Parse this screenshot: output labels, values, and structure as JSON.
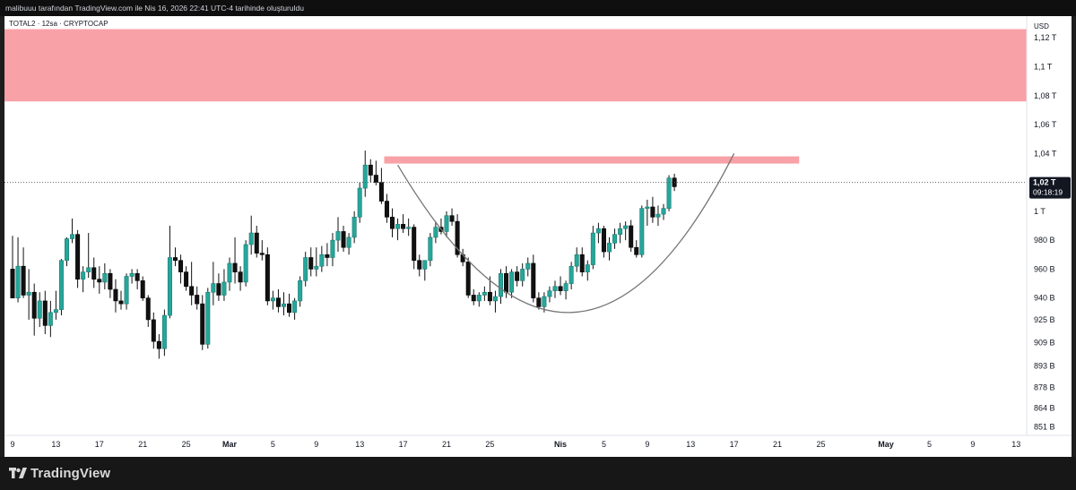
{
  "header": {
    "credit": "malibuuu tarafından TradingView.com ile Nis 16, 2026 22:41 UTC-4 tarihinde oluşturuldu"
  },
  "brand": {
    "name": "TradingView",
    "logo_icon": "tradingview-logo-icon"
  },
  "colors": {
    "up": "#26a69a",
    "down": "#111111",
    "zone": "#f8a1a7",
    "curve": "#757575",
    "price_tag": "#131722"
  },
  "chart_data": {
    "type": "candlestick",
    "title": "TOTAL2 · 12sa · CRYPTOCAP",
    "currency": "USD",
    "y_ticks": [
      {
        "label": "1,12 T",
        "value": 1120
      },
      {
        "label": "1,1 T",
        "value": 1100
      },
      {
        "label": "1,08 T",
        "value": 1080
      },
      {
        "label": "1,06 T",
        "value": 1060
      },
      {
        "label": "1,04 T",
        "value": 1040
      },
      {
        "label": "1 T",
        "value": 1000
      },
      {
        "label": "980 B",
        "value": 980
      },
      {
        "label": "960 B",
        "value": 960
      },
      {
        "label": "940 B",
        "value": 940
      },
      {
        "label": "925 B",
        "value": 925
      },
      {
        "label": "909 B",
        "value": 909
      },
      {
        "label": "893 B",
        "value": 893
      },
      {
        "label": "878 B",
        "value": 878
      },
      {
        "label": "864 B",
        "value": 864
      },
      {
        "label": "851 B",
        "value": 851
      }
    ],
    "x_ticks": [
      {
        "label": "9",
        "bar": 0
      },
      {
        "label": "13",
        "bar": 8
      },
      {
        "label": "17",
        "bar": 16
      },
      {
        "label": "21",
        "bar": 24
      },
      {
        "label": "25",
        "bar": 32
      },
      {
        "label": "Mar",
        "bar": 40
      },
      {
        "label": "5",
        "bar": 48
      },
      {
        "label": "9",
        "bar": 56
      },
      {
        "label": "13",
        "bar": 64
      },
      {
        "label": "17",
        "bar": 72
      },
      {
        "label": "21",
        "bar": 80
      },
      {
        "label": "25",
        "bar": 88
      },
      {
        "label": "Nis",
        "bar": 101
      },
      {
        "label": "5",
        "bar": 109
      },
      {
        "label": "9",
        "bar": 117
      },
      {
        "label": "13",
        "bar": 125
      },
      {
        "label": "17",
        "bar": 133
      },
      {
        "label": "21",
        "bar": 141
      },
      {
        "label": "25",
        "bar": 149
      },
      {
        "label": "May",
        "bar": 161
      },
      {
        "label": "5",
        "bar": 169
      },
      {
        "label": "9",
        "bar": 177
      },
      {
        "label": "13",
        "bar": 185
      }
    ],
    "last_price": {
      "label": "1,02 T",
      "countdown": "09:18:19",
      "value": 1020
    },
    "zones": [
      {
        "name": "upper-resistance-zone",
        "from_bar": 0,
        "to_bar": 189,
        "low": 1076,
        "high": 1126
      },
      {
        "name": "neckline-zone",
        "from_bar": 70,
        "to_bar": 145,
        "low": 1033,
        "high": 1038
      }
    ],
    "curve": {
      "start_bar": 71,
      "start_value": 1032,
      "bottom_bar": 103,
      "bottom_value": 930,
      "end_bar": 133,
      "end_value": 1040
    },
    "candles": [
      {
        "o": 960,
        "h": 983,
        "l": 941,
        "c": 940
      },
      {
        "o": 940,
        "h": 982,
        "l": 937,
        "c": 962
      },
      {
        "o": 962,
        "h": 975,
        "l": 940,
        "c": 942
      },
      {
        "o": 942,
        "h": 960,
        "l": 925,
        "c": 944
      },
      {
        "o": 944,
        "h": 950,
        "l": 914,
        "c": 926
      },
      {
        "o": 926,
        "h": 944,
        "l": 920,
        "c": 938
      },
      {
        "o": 938,
        "h": 945,
        "l": 915,
        "c": 921
      },
      {
        "o": 921,
        "h": 938,
        "l": 913,
        "c": 930
      },
      {
        "o": 930,
        "h": 945,
        "l": 925,
        "c": 932
      },
      {
        "o": 932,
        "h": 967,
        "l": 928,
        "c": 966
      },
      {
        "o": 966,
        "h": 982,
        "l": 962,
        "c": 981
      },
      {
        "o": 981,
        "h": 995,
        "l": 978,
        "c": 984
      },
      {
        "o": 984,
        "h": 987,
        "l": 947,
        "c": 953
      },
      {
        "o": 953,
        "h": 962,
        "l": 944,
        "c": 958
      },
      {
        "o": 958,
        "h": 985,
        "l": 954,
        "c": 961
      },
      {
        "o": 961,
        "h": 968,
        "l": 947,
        "c": 953
      },
      {
        "o": 953,
        "h": 962,
        "l": 943,
        "c": 951
      },
      {
        "o": 951,
        "h": 964,
        "l": 946,
        "c": 957
      },
      {
        "o": 957,
        "h": 960,
        "l": 940,
        "c": 946
      },
      {
        "o": 946,
        "h": 953,
        "l": 930,
        "c": 938
      },
      {
        "o": 938,
        "h": 945,
        "l": 932,
        "c": 936
      },
      {
        "o": 936,
        "h": 957,
        "l": 932,
        "c": 955
      },
      {
        "o": 955,
        "h": 960,
        "l": 950,
        "c": 957
      },
      {
        "o": 957,
        "h": 960,
        "l": 946,
        "c": 952
      },
      {
        "o": 952,
        "h": 955,
        "l": 938,
        "c": 940
      },
      {
        "o": 940,
        "h": 942,
        "l": 920,
        "c": 925
      },
      {
        "o": 925,
        "h": 930,
        "l": 905,
        "c": 910
      },
      {
        "o": 910,
        "h": 915,
        "l": 898,
        "c": 905
      },
      {
        "o": 905,
        "h": 932,
        "l": 900,
        "c": 928
      },
      {
        "o": 928,
        "h": 990,
        "l": 926,
        "c": 968
      },
      {
        "o": 968,
        "h": 975,
        "l": 962,
        "c": 966
      },
      {
        "o": 966,
        "h": 970,
        "l": 950,
        "c": 958
      },
      {
        "o": 958,
        "h": 962,
        "l": 945,
        "c": 948
      },
      {
        "o": 948,
        "h": 965,
        "l": 935,
        "c": 942
      },
      {
        "o": 942,
        "h": 948,
        "l": 932,
        "c": 936
      },
      {
        "o": 936,
        "h": 942,
        "l": 904,
        "c": 908
      },
      {
        "o": 908,
        "h": 947,
        "l": 905,
        "c": 944
      },
      {
        "o": 944,
        "h": 965,
        "l": 935,
        "c": 950
      },
      {
        "o": 950,
        "h": 957,
        "l": 938,
        "c": 942
      },
      {
        "o": 942,
        "h": 960,
        "l": 938,
        "c": 951
      },
      {
        "o": 951,
        "h": 968,
        "l": 945,
        "c": 964
      },
      {
        "o": 964,
        "h": 982,
        "l": 950,
        "c": 958
      },
      {
        "o": 958,
        "h": 962,
        "l": 945,
        "c": 951
      },
      {
        "o": 951,
        "h": 980,
        "l": 948,
        "c": 977
      },
      {
        "o": 977,
        "h": 997,
        "l": 970,
        "c": 985
      },
      {
        "o": 985,
        "h": 990,
        "l": 968,
        "c": 971
      },
      {
        "o": 971,
        "h": 980,
        "l": 966,
        "c": 970
      },
      {
        "o": 970,
        "h": 975,
        "l": 935,
        "c": 938
      },
      {
        "o": 938,
        "h": 945,
        "l": 932,
        "c": 940
      },
      {
        "o": 940,
        "h": 946,
        "l": 930,
        "c": 934
      },
      {
        "o": 934,
        "h": 944,
        "l": 928,
        "c": 936
      },
      {
        "o": 936,
        "h": 943,
        "l": 927,
        "c": 930
      },
      {
        "o": 930,
        "h": 940,
        "l": 925,
        "c": 938
      },
      {
        "o": 938,
        "h": 955,
        "l": 934,
        "c": 952
      },
      {
        "o": 952,
        "h": 972,
        "l": 948,
        "c": 968
      },
      {
        "o": 968,
        "h": 975,
        "l": 955,
        "c": 960
      },
      {
        "o": 960,
        "h": 975,
        "l": 955,
        "c": 962
      },
      {
        "o": 962,
        "h": 976,
        "l": 958,
        "c": 970
      },
      {
        "o": 970,
        "h": 978,
        "l": 962,
        "c": 968
      },
      {
        "o": 968,
        "h": 985,
        "l": 962,
        "c": 980
      },
      {
        "o": 980,
        "h": 996,
        "l": 972,
        "c": 986
      },
      {
        "o": 986,
        "h": 990,
        "l": 972,
        "c": 975
      },
      {
        "o": 975,
        "h": 985,
        "l": 970,
        "c": 982
      },
      {
        "o": 982,
        "h": 1000,
        "l": 978,
        "c": 996
      },
      {
        "o": 996,
        "h": 1020,
        "l": 992,
        "c": 1016
      },
      {
        "o": 1016,
        "h": 1042,
        "l": 1010,
        "c": 1032
      },
      {
        "o": 1032,
        "h": 1036,
        "l": 1020,
        "c": 1025
      },
      {
        "o": 1025,
        "h": 1035,
        "l": 1018,
        "c": 1020
      },
      {
        "o": 1020,
        "h": 1030,
        "l": 1005,
        "c": 1007
      },
      {
        "o": 1007,
        "h": 1012,
        "l": 992,
        "c": 996
      },
      {
        "o": 996,
        "h": 1002,
        "l": 982,
        "c": 988
      },
      {
        "o": 988,
        "h": 995,
        "l": 980,
        "c": 991
      },
      {
        "o": 991,
        "h": 998,
        "l": 985,
        "c": 988
      },
      {
        "o": 988,
        "h": 995,
        "l": 983,
        "c": 989
      },
      {
        "o": 989,
        "h": 991,
        "l": 960,
        "c": 966
      },
      {
        "o": 966,
        "h": 970,
        "l": 955,
        "c": 960
      },
      {
        "o": 960,
        "h": 965,
        "l": 952,
        "c": 966
      },
      {
        "o": 966,
        "h": 985,
        "l": 962,
        "c": 982
      },
      {
        "o": 982,
        "h": 993,
        "l": 978,
        "c": 989
      },
      {
        "o": 989,
        "h": 995,
        "l": 984,
        "c": 986
      },
      {
        "o": 986,
        "h": 1000,
        "l": 982,
        "c": 997
      },
      {
        "o": 997,
        "h": 1002,
        "l": 990,
        "c": 993
      },
      {
        "o": 993,
        "h": 998,
        "l": 968,
        "c": 970
      },
      {
        "o": 970,
        "h": 974,
        "l": 962,
        "c": 965
      },
      {
        "o": 965,
        "h": 968,
        "l": 940,
        "c": 942
      },
      {
        "o": 942,
        "h": 946,
        "l": 935,
        "c": 938
      },
      {
        "o": 938,
        "h": 944,
        "l": 934,
        "c": 942
      },
      {
        "o": 942,
        "h": 948,
        "l": 938,
        "c": 944
      },
      {
        "o": 944,
        "h": 955,
        "l": 935,
        "c": 938
      },
      {
        "o": 938,
        "h": 945,
        "l": 930,
        "c": 941
      },
      {
        "o": 941,
        "h": 960,
        "l": 936,
        "c": 957
      },
      {
        "o": 957,
        "h": 962,
        "l": 940,
        "c": 944
      },
      {
        "o": 944,
        "h": 960,
        "l": 940,
        "c": 958
      },
      {
        "o": 958,
        "h": 962,
        "l": 948,
        "c": 952
      },
      {
        "o": 952,
        "h": 964,
        "l": 948,
        "c": 960
      },
      {
        "o": 960,
        "h": 968,
        "l": 955,
        "c": 964
      },
      {
        "o": 964,
        "h": 970,
        "l": 937,
        "c": 940
      },
      {
        "o": 940,
        "h": 944,
        "l": 932,
        "c": 934
      },
      {
        "o": 934,
        "h": 944,
        "l": 930,
        "c": 941
      },
      {
        "o": 941,
        "h": 948,
        "l": 937,
        "c": 945
      },
      {
        "o": 945,
        "h": 952,
        "l": 940,
        "c": 948
      },
      {
        "o": 948,
        "h": 955,
        "l": 942,
        "c": 945
      },
      {
        "o": 945,
        "h": 952,
        "l": 939,
        "c": 950
      },
      {
        "o": 950,
        "h": 965,
        "l": 946,
        "c": 962
      },
      {
        "o": 962,
        "h": 975,
        "l": 958,
        "c": 970
      },
      {
        "o": 970,
        "h": 975,
        "l": 955,
        "c": 958
      },
      {
        "o": 958,
        "h": 966,
        "l": 952,
        "c": 963
      },
      {
        "o": 963,
        "h": 990,
        "l": 960,
        "c": 985
      },
      {
        "o": 985,
        "h": 992,
        "l": 978,
        "c": 988
      },
      {
        "o": 988,
        "h": 990,
        "l": 968,
        "c": 972
      },
      {
        "o": 972,
        "h": 982,
        "l": 966,
        "c": 978
      },
      {
        "o": 978,
        "h": 988,
        "l": 974,
        "c": 984
      },
      {
        "o": 984,
        "h": 992,
        "l": 978,
        "c": 988
      },
      {
        "o": 988,
        "h": 993,
        "l": 980,
        "c": 990
      },
      {
        "o": 990,
        "h": 994,
        "l": 972,
        "c": 975
      },
      {
        "o": 975,
        "h": 980,
        "l": 968,
        "c": 970
      },
      {
        "o": 970,
        "h": 1004,
        "l": 968,
        "c": 1002
      },
      {
        "o": 1002,
        "h": 1008,
        "l": 990,
        "c": 1003
      },
      {
        "o": 1003,
        "h": 1010,
        "l": 992,
        "c": 996
      },
      {
        "o": 996,
        "h": 1004,
        "l": 990,
        "c": 998
      },
      {
        "o": 998,
        "h": 1005,
        "l": 994,
        "c": 1002
      },
      {
        "o": 1002,
        "h": 1025,
        "l": 1000,
        "c": 1023
      },
      {
        "o": 1023,
        "h": 1026,
        "l": 1014,
        "c": 1017
      }
    ]
  }
}
